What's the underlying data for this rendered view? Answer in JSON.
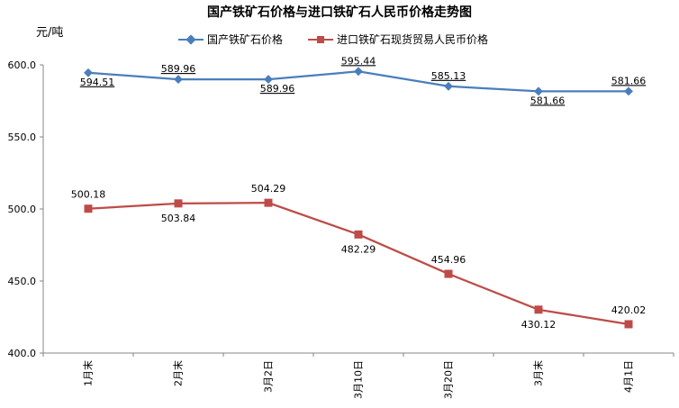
{
  "chart_data": {
    "type": "line",
    "title": "国产铁矿石价格与进口铁矿石人民币价格走势图",
    "unit_label": "元/吨",
    "categories": [
      "1月末",
      "2月末",
      "3月2日",
      "3月10日",
      "3月20日",
      "3月末",
      "4月1日"
    ],
    "ylim": [
      400.0,
      600.0
    ],
    "yticks": [
      "600.0",
      "550.0",
      "500.0",
      "450.0",
      "400.0"
    ],
    "ytick_values": [
      600,
      550,
      500,
      450,
      400
    ],
    "legend_position": "top",
    "grid": false,
    "series": [
      {
        "name": "国产铁矿石价格",
        "color": "#4a7ebb",
        "marker": "diamond",
        "values": [
          594.51,
          589.96,
          589.96,
          595.44,
          585.13,
          581.66,
          581.66
        ],
        "labels": [
          "594.51",
          "589.96",
          "589.96",
          "595.44",
          "585.13",
          "581.66",
          "581.66"
        ]
      },
      {
        "name": "进口铁矿石现货贸易人民币价格",
        "color": "#be4b48",
        "marker": "square",
        "values": [
          500.18,
          503.84,
          504.29,
          482.29,
          454.96,
          430.12,
          420.02
        ],
        "labels": [
          "500.18",
          "503.84",
          "504.29",
          "482.29",
          "454.96",
          "430.12",
          "420.02"
        ]
      }
    ]
  }
}
